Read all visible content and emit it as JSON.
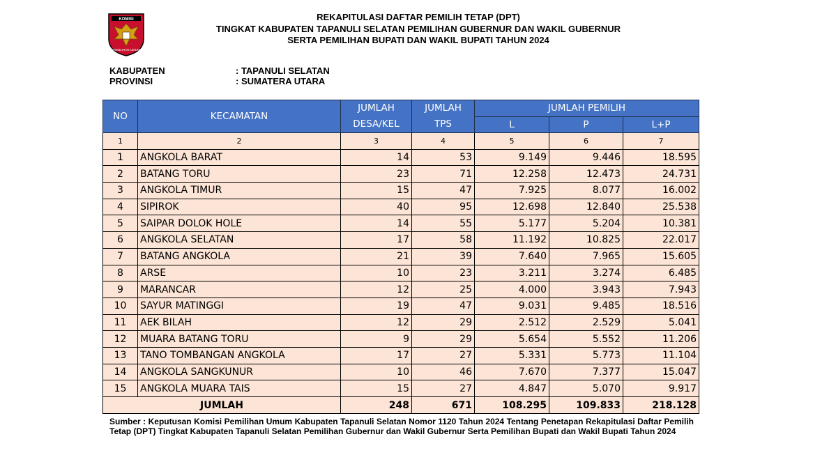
{
  "header": {
    "title_lines": [
      "REKAPITULASI DAFTAR PEMILIH TETAP (DPT)",
      "TINGKAT KABUPATEN TAPANULI SELATAN PEMILIHAN GUBERNUR DAN WAKIL GUBERNUR",
      "SERTA PEMILIHAN BUPATI DAN WAKIL BUPATI TAHUN 2024"
    ],
    "logo": {
      "top_text": "KOMISI",
      "bottom_text": "PEMILIHAN UMUM"
    },
    "info": [
      {
        "label": "KABUPATEN",
        "value": ": TAPANULI SELATAN"
      },
      {
        "label": "PROVINSI",
        "value": ": SUMATERA UTARA"
      }
    ]
  },
  "table": {
    "head": {
      "no": "NO",
      "kecamatan": "KECAMATAN",
      "desa": "JUMLAH DESA/KEL",
      "tps": "JUMLAH TPS",
      "pemilih": "JUMLAH PEMILIH",
      "l": "L",
      "p": "P",
      "lp": "L+P"
    },
    "index_row": [
      "1",
      "2",
      "3",
      "4",
      "5",
      "6",
      "7"
    ],
    "rows": [
      [
        "1",
        "ANGKOLA BARAT",
        "14",
        "53",
        "9.149",
        "9.446",
        "18.595"
      ],
      [
        "2",
        "BATANG TORU",
        "23",
        "71",
        "12.258",
        "12.473",
        "24.731"
      ],
      [
        "3",
        "ANGKOLA TIMUR",
        "15",
        "47",
        "7.925",
        "8.077",
        "16.002"
      ],
      [
        "4",
        "SIPIROK",
        "40",
        "95",
        "12.698",
        "12.840",
        "25.538"
      ],
      [
        "5",
        "SAIPAR DOLOK HOLE",
        "14",
        "55",
        "5.177",
        "5.204",
        "10.381"
      ],
      [
        "6",
        "ANGKOLA SELATAN",
        "17",
        "58",
        "11.192",
        "10.825",
        "22.017"
      ],
      [
        "7",
        "BATANG ANGKOLA",
        "21",
        "39",
        "7.640",
        "7.965",
        "15.605"
      ],
      [
        "8",
        "ARSE",
        "10",
        "23",
        "3.211",
        "3.274",
        "6.485"
      ],
      [
        "9",
        "MARANCAR",
        "12",
        "25",
        "4.000",
        "3.943",
        "7.943"
      ],
      [
        "10",
        "SAYUR MATINGGI",
        "19",
        "47",
        "9.031",
        "9.485",
        "18.516"
      ],
      [
        "11",
        "AEK BILAH",
        "12",
        "29",
        "2.512",
        "2.529",
        "5.041"
      ],
      [
        "12",
        "MUARA BATANG TORU",
        "9",
        "29",
        "5.654",
        "5.552",
        "11.206"
      ],
      [
        "13",
        "TANO TOMBANGAN ANGKOLA",
        "17",
        "27",
        "5.331",
        "5.773",
        "11.104"
      ],
      [
        "14",
        "ANGKOLA SANGKUNUR",
        "10",
        "46",
        "7.670",
        "7.377",
        "15.047"
      ],
      [
        "15",
        "ANGKOLA MUARA TAIS",
        "15",
        "27",
        "4.847",
        "5.070",
        "9.917"
      ]
    ],
    "total": [
      "JUMLAH",
      "248",
      "671",
      "108.295",
      "109.833",
      "218.128"
    ]
  },
  "footer": "Sumber : Keputusan Komisi Pemilihan Umum Kabupaten Tapanuli Selatan Nomor 1120 Tahun 2024 Tentang Penetapan Rekapitulasi Daftar Pemilih Tetap (DPT) Tingkat Kabupaten Tapanuli Selatan Pemilihan Gubernur dan Wakil Gubernur Serta Pemilihan Bupati dan Wakil Bupati Tahun 2024"
}
